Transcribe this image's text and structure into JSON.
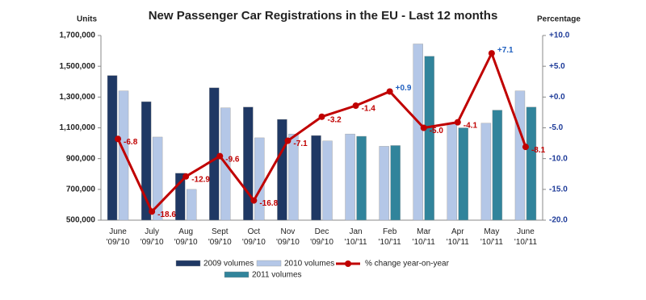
{
  "chart_data": {
    "type": "bar-line",
    "title": "New Passenger Car Registrations in the EU - Last 12 months",
    "y_label": "Units",
    "y2_label": "Percentage",
    "categories": [
      "June '09/'10",
      "July '09/'10",
      "Aug '09/'10",
      "Sept '09/'10",
      "Oct '09/'10",
      "Nov '09/'10",
      "Dec '09/'10",
      "Jan '10/'11",
      "Feb '10/'11",
      "Mar '10/'11",
      "Apr '10/'11",
      "May '10/'11",
      "June '10/'11"
    ],
    "series": [
      {
        "name": "2009 volumes",
        "type": "bar",
        "color": "#1f3864",
        "values": [
          1440000,
          1270000,
          805000,
          1360000,
          1235000,
          1155000,
          1050000,
          null,
          null,
          null,
          null,
          null,
          null
        ]
      },
      {
        "name": "2010 volumes",
        "type": "bar",
        "color": "#b4c7e7",
        "values": [
          1340000,
          1040000,
          700000,
          1230000,
          1035000,
          1060000,
          1015000,
          1060000,
          980000,
          1645000,
          1130000,
          1130000,
          1340000
        ]
      },
      {
        "name": "% change year-on-year",
        "type": "line",
        "axis": "y2",
        "color": "#c00000",
        "values": [
          -6.8,
          -18.6,
          -12.9,
          -9.6,
          -16.8,
          -7.1,
          -3.2,
          -1.4,
          0.9,
          -5.0,
          -4.1,
          7.1,
          -8.1
        ],
        "value_labels": [
          "-6.8",
          "-18.6",
          "-12.9",
          "-9.6",
          "-16.8",
          "-7.1",
          "-3.2",
          "-1.4",
          "+0.9",
          "-5.0",
          "-4.1",
          "+7.1",
          "-8.1"
        ]
      },
      {
        "name": "2011 volumes",
        "type": "bar",
        "color": "#31849b",
        "values": [
          null,
          null,
          null,
          null,
          null,
          null,
          null,
          1045000,
          985000,
          1565000,
          1100000,
          1215000,
          1235000
        ]
      }
    ],
    "ylim": [
      500000,
      1700000
    ],
    "yticks": [
      {
        "value": 500000,
        "label": "500,000"
      },
      {
        "value": 700000,
        "label": "700,000"
      },
      {
        "value": 900000,
        "label": "900,000"
      },
      {
        "value": 1100000,
        "label": "1,100,000"
      },
      {
        "value": 1300000,
        "label": "1,300,000"
      },
      {
        "value": 1500000,
        "label": "1,500,000"
      },
      {
        "value": 1700000,
        "label": "1,700,000"
      }
    ],
    "y2lim": [
      -20,
      10
    ],
    "y2ticks": [
      {
        "value": -20,
        "label": "-20.0"
      },
      {
        "value": -15,
        "label": "-15.0"
      },
      {
        "value": -10,
        "label": "-10.0"
      },
      {
        "value": -5,
        "label": "-5.0"
      },
      {
        "value": 0,
        "label": "+0.0"
      },
      {
        "value": 5,
        "label": "+5.0"
      },
      {
        "value": 10,
        "label": "+10.0"
      }
    ],
    "legend": "bottom"
  }
}
